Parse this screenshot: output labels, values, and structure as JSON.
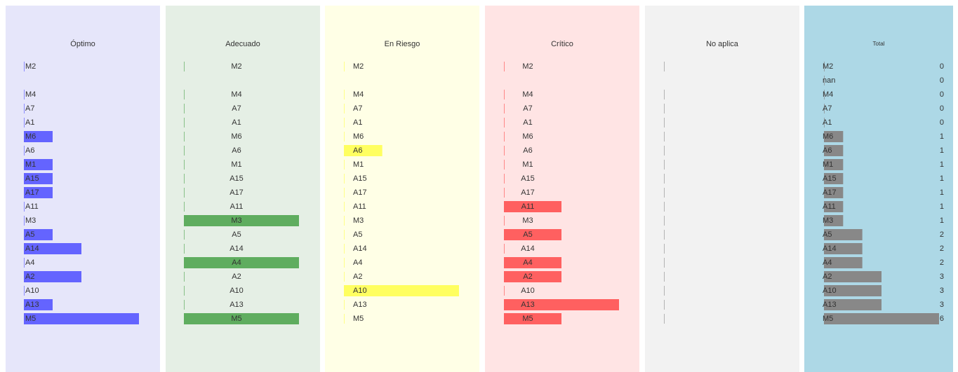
{
  "chart_data": [
    {
      "type": "bar",
      "title": "Óptimo",
      "color": "#6464ff",
      "background": "#e6e6fa",
      "xlim": [
        0,
        4
      ],
      "categories": [
        "M2",
        null,
        "M4",
        "A7",
        "A1",
        "M6",
        "A6",
        "M1",
        "A15",
        "A17",
        "A11",
        "M3",
        "A5",
        "A14",
        "A4",
        "A2",
        "A10",
        "A13",
        "M5"
      ],
      "values": [
        0,
        null,
        0,
        0,
        0,
        1,
        0,
        1,
        1,
        1,
        0,
        0,
        1,
        2,
        0,
        2,
        0,
        1,
        4
      ]
    },
    {
      "type": "bar",
      "title": "Adecuado",
      "color": "#5fad5f",
      "background": "#e5efe5",
      "xlim": [
        0,
        1
      ],
      "categories": [
        "M2",
        null,
        "M4",
        "A7",
        "A1",
        "M6",
        "A6",
        "M1",
        "A15",
        "A17",
        "A11",
        "M3",
        "A5",
        "A14",
        "A4",
        "A2",
        "A10",
        "A13",
        "M5"
      ],
      "values": [
        0,
        null,
        0,
        0,
        0,
        0,
        0,
        0,
        0,
        0,
        0,
        1,
        0,
        0,
        1,
        0,
        0,
        0,
        1
      ]
    },
    {
      "type": "bar",
      "title": "En Riesgo",
      "color": "#ffff60",
      "background": "#ffffe6",
      "xlim": [
        0,
        3
      ],
      "categories": [
        "M2",
        null,
        "M4",
        "A7",
        "A1",
        "M6",
        "A6",
        "M1",
        "A15",
        "A17",
        "A11",
        "M3",
        "A5",
        "A14",
        "A4",
        "A2",
        "A10",
        "A13",
        "M5"
      ],
      "values": [
        0,
        null,
        0,
        0,
        0,
        0,
        1,
        0,
        0,
        0,
        0,
        0,
        0,
        0,
        0,
        0,
        3,
        0,
        0
      ]
    },
    {
      "type": "bar",
      "title": "Crítico",
      "color": "#ff6060",
      "background": "#ffe4e4",
      "xlim": [
        0,
        2
      ],
      "categories": [
        "M2",
        null,
        "M4",
        "A7",
        "A1",
        "M6",
        "A6",
        "M1",
        "A15",
        "A17",
        "A11",
        "M3",
        "A5",
        "A14",
        "A4",
        "A2",
        "A10",
        "A13",
        "M5"
      ],
      "values": [
        0,
        null,
        0,
        0,
        0,
        0,
        0,
        0,
        0,
        0,
        1,
        0,
        1,
        0,
        1,
        1,
        0,
        2,
        1
      ]
    },
    {
      "type": "bar",
      "title": "No aplica",
      "color": "#999999",
      "background": "#f2f2f2",
      "xlim": [
        0,
        1
      ],
      "values": [
        0,
        null,
        0,
        0,
        0,
        0,
        0,
        0,
        0,
        0,
        0,
        0,
        0,
        0,
        0,
        0,
        0,
        0,
        0
      ]
    },
    {
      "type": "bar",
      "title": "Total",
      "color": "#888888",
      "background": "#add8e6",
      "xlim": [
        0,
        6
      ],
      "categories": [
        "M2",
        "nan",
        "M4",
        "A7",
        "A1",
        "M6",
        "A6",
        "M1",
        "A15",
        "A17",
        "A11",
        "M3",
        "A5",
        "A14",
        "A4",
        "A2",
        "A10",
        "A13",
        "M5"
      ],
      "values": [
        0,
        0,
        0,
        0,
        0,
        1,
        1,
        1,
        1,
        1,
        1,
        1,
        2,
        2,
        2,
        3,
        3,
        3,
        6
      ]
    }
  ]
}
